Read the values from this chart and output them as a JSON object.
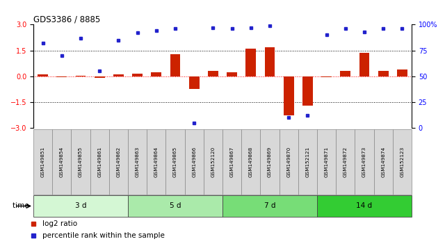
{
  "title": "GDS3386 / 8885",
  "samples": [
    "GSM149851",
    "GSM149854",
    "GSM149855",
    "GSM149861",
    "GSM149862",
    "GSM149863",
    "GSM149864",
    "GSM149865",
    "GSM149866",
    "GSM152120",
    "GSM149867",
    "GSM149868",
    "GSM149869",
    "GSM149870",
    "GSM152121",
    "GSM149871",
    "GSM149872",
    "GSM149873",
    "GSM149874",
    "GSM152123"
  ],
  "log2_ratio": [
    0.12,
    -0.05,
    0.05,
    -0.08,
    0.1,
    0.15,
    0.22,
    1.28,
    -0.75,
    0.32,
    0.22,
    1.62,
    1.68,
    -2.28,
    -1.72,
    -0.05,
    0.32,
    1.38,
    0.32,
    0.38
  ],
  "percentile": [
    82,
    70,
    87,
    55,
    85,
    92,
    94,
    96,
    5,
    97,
    96,
    97,
    99,
    10,
    12,
    90,
    96,
    93,
    96,
    96
  ],
  "groups": [
    {
      "label": "3 d",
      "start": 0,
      "end": 5,
      "color": "#d4f7d4"
    },
    {
      "label": "5 d",
      "start": 5,
      "end": 10,
      "color": "#aaeaaa"
    },
    {
      "label": "7 d",
      "start": 10,
      "end": 15,
      "color": "#77dd77"
    },
    {
      "label": "14 d",
      "start": 15,
      "end": 20,
      "color": "#33cc33"
    }
  ],
  "bar_color": "#cc2200",
  "dot_color": "#2222cc",
  "ylim_left": [
    -3,
    3
  ],
  "ylim_right": [
    0,
    100
  ],
  "yticks_left": [
    -3,
    -1.5,
    0,
    1.5,
    3
  ],
  "yticks_right": [
    0,
    25,
    50,
    75,
    100
  ],
  "hlines_dotted": [
    -1.5,
    1.5
  ],
  "hline_red": 0,
  "bg_color": "#ffffff"
}
